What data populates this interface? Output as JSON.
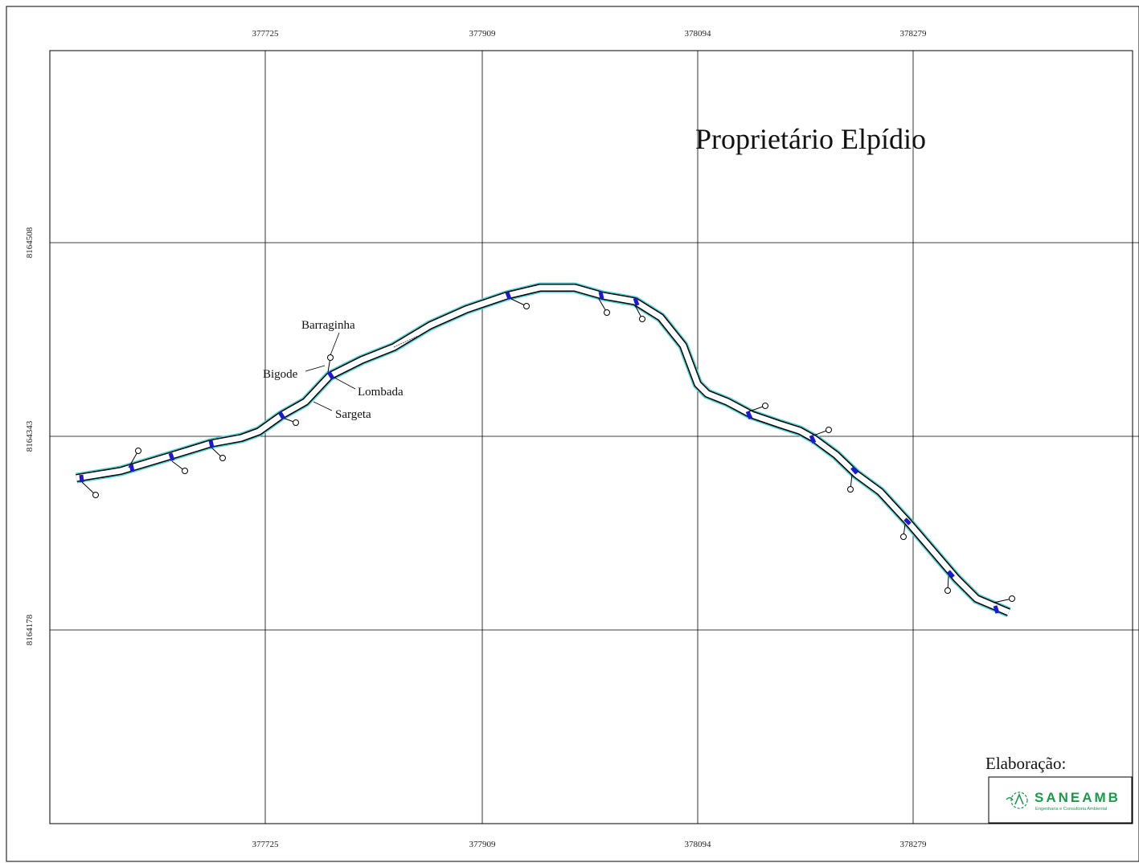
{
  "title": "Proprietário Elpídio",
  "x_ticks": [
    "377725",
    "377909",
    "378094",
    "378279"
  ],
  "y_ticks": [
    "8164508",
    "8164343",
    "8164178"
  ],
  "labels": {
    "barraginha": "Barraginha",
    "bigode": "Bigode",
    "lombada": "Lombada",
    "sargeta": "Sargeta"
  },
  "elaboration_label": "Elaboração:",
  "logo": {
    "name": "SANEAMB",
    "tagline": "Engenharia e Consultoria Ambiental",
    "color": "#1a9a4a"
  },
  "colors": {
    "road_edge": "#000000",
    "road_outline": "#4fd0d6",
    "lombada": "#1a1ad6",
    "grid": "#000000"
  },
  "icons": {
    "logo_symbol": "saneamb-logo-icon"
  }
}
